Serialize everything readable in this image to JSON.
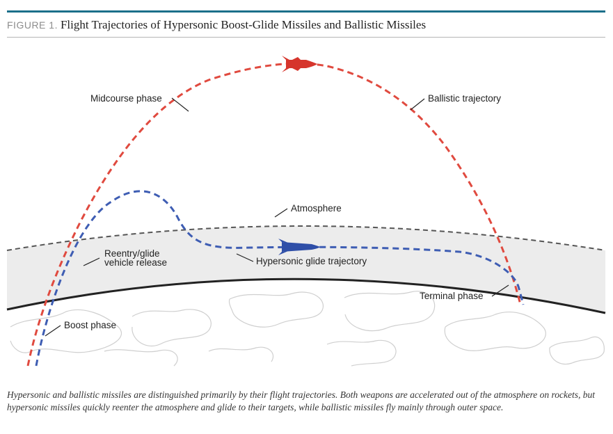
{
  "figure": {
    "label": "FIGURE 1.",
    "title": "Flight Trajectories of Hypersonic Boost-Glide Missiles and Ballistic Missiles"
  },
  "diagram": {
    "labels": {
      "midcourse": "Midcourse phase",
      "ballistic": "Ballistic trajectory",
      "atmosphere": "Atmosphere",
      "reentry_line1": "Reentry/glide",
      "reentry_line2": "vehicle release",
      "hypersonic": "Hypersonic glide trajectory",
      "terminal": "Terminal phase",
      "boost": "Boost phase"
    },
    "colors": {
      "ballistic": "#e04a3f",
      "hypersonic": "#3e5db3",
      "atmosphere_band": "#ececec",
      "earth_line": "#222222",
      "land_outline": "#cfcfcf"
    },
    "icons": [
      "ballistic-missile-icon",
      "hypersonic-glide-vehicle-icon"
    ]
  },
  "caption": "Hypersonic and ballistic missiles are distinguished primarily by their flight trajectories. Both weapons are accelerated out of the atmosphere on rockets, but hypersonic missiles quickly reenter the atmosphere and glide to their targets, while ballistic missiles fly mainly through outer space."
}
